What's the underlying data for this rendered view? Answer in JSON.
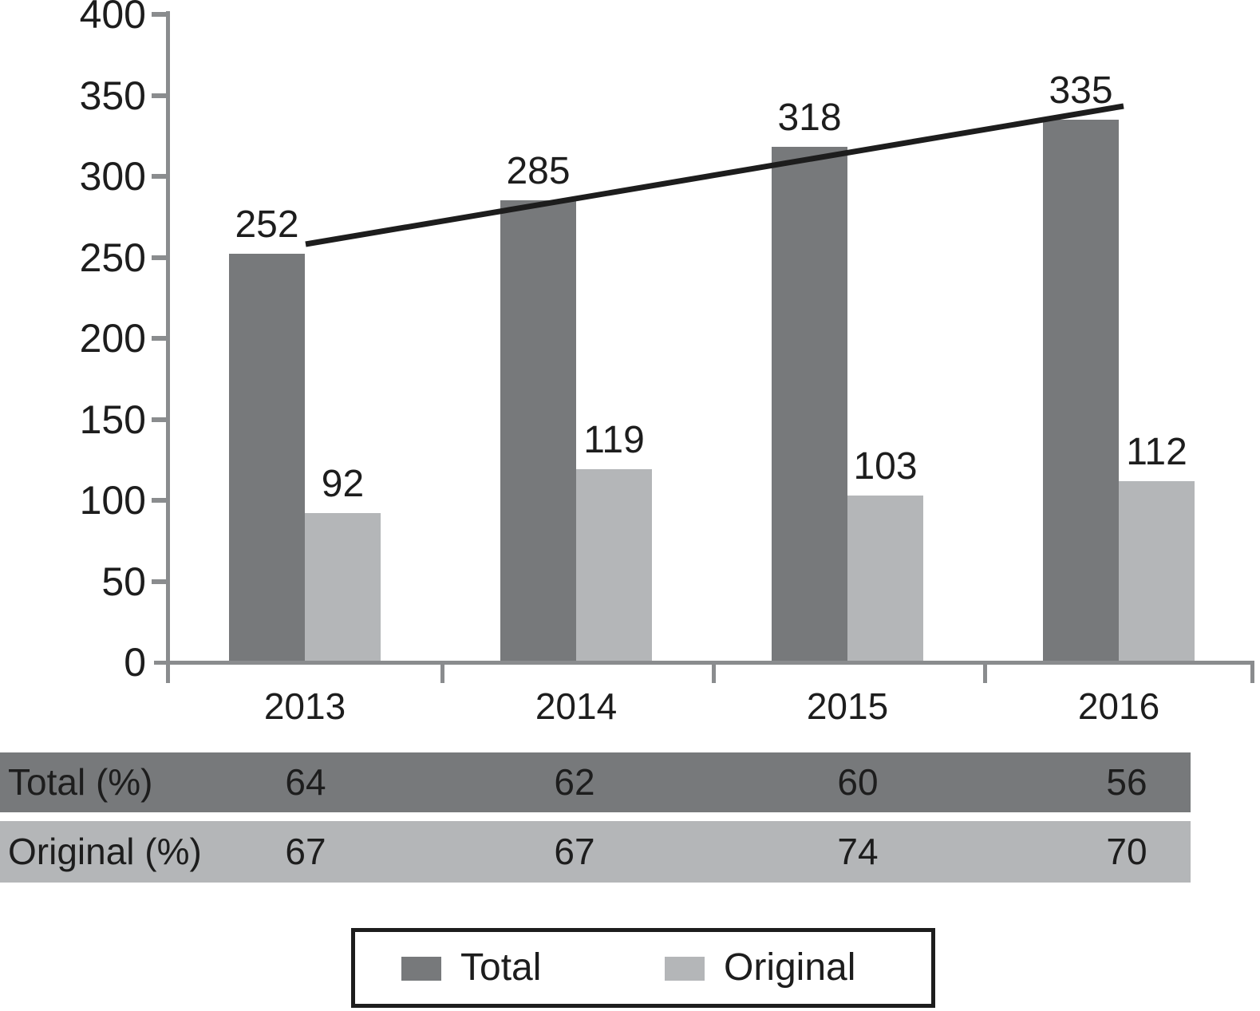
{
  "chart_data": {
    "type": "bar",
    "categories": [
      "2013",
      "2014",
      "2015",
      "2016"
    ],
    "series": [
      {
        "name": "Total",
        "color": "#77797b",
        "values": [
          252,
          285,
          318,
          335
        ]
      },
      {
        "name": "Original",
        "color": "#b4b6b8",
        "values": [
          92,
          119,
          103,
          112
        ]
      }
    ],
    "bar_value_labels": [
      [
        252,
        285,
        318,
        335
      ],
      [
        92,
        119,
        103,
        112
      ]
    ],
    "ylim": [
      0,
      400
    ],
    "yticks": [
      400,
      350,
      300,
      250,
      200,
      150,
      100,
      50,
      0
    ],
    "xlabel": "",
    "ylabel": "",
    "grid": false,
    "trend_line": {
      "over_series": "Total",
      "shape": "straight rising line touching tops of Total bars from 252 to 335"
    },
    "legend": {
      "position": "bottom",
      "entries": [
        "Total",
        "Original"
      ]
    },
    "table": {
      "rows": [
        {
          "label": "Total (%)",
          "values": [
            "64",
            "62",
            "60",
            "56"
          ]
        },
        {
          "label": "Original (%)",
          "values": [
            "67",
            "67",
            "74",
            "70"
          ]
        }
      ]
    }
  },
  "colors": {
    "total_bar": "#77797b",
    "original_bar": "#b4b6b8",
    "axis": "#8a8c8e",
    "trend_line": "#1d1d1d",
    "text": "#1d1d1d",
    "background": "#ffffff"
  }
}
